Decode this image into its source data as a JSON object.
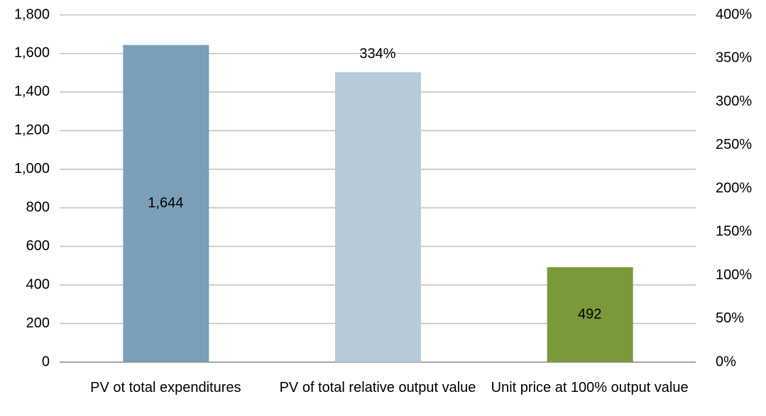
{
  "chart_data": {
    "type": "bar",
    "categories": [
      "PV ot total expenditures",
      "PV of total relative output value",
      "Unit price at 100% output value"
    ],
    "values": [
      1644,
      334,
      492
    ],
    "value_labels": [
      "1,644",
      "334%",
      "492"
    ],
    "axes": [
      "y",
      "y2",
      "y"
    ],
    "colors": [
      "#7a9fb8",
      "#b8cad8",
      "#7a9a3a"
    ],
    "ylim": [
      0,
      1800
    ],
    "yticks": [
      0,
      200,
      400,
      600,
      800,
      {
        "value": 1000,
        "label": "1,000"
      },
      {
        "value": 1200,
        "label": "1,200"
      },
      {
        "value": 1400,
        "label": "1,400"
      },
      {
        "value": 1600,
        "label": "1,600"
      },
      {
        "value": 1800,
        "label": "1,800"
      }
    ],
    "y2lim": [
      0,
      400
    ],
    "y2ticks": [
      {
        "value": 0,
        "label": "0%"
      },
      {
        "value": 50,
        "label": "50%"
      },
      {
        "value": 100,
        "label": "100%"
      },
      {
        "value": 150,
        "label": "150%"
      },
      {
        "value": 200,
        "label": "200%"
      },
      {
        "value": 250,
        "label": "250%"
      },
      {
        "value": 300,
        "label": "300%"
      },
      {
        "value": 350,
        "label": "350%"
      },
      {
        "value": 400,
        "label": "400%"
      }
    ],
    "grid": true
  }
}
